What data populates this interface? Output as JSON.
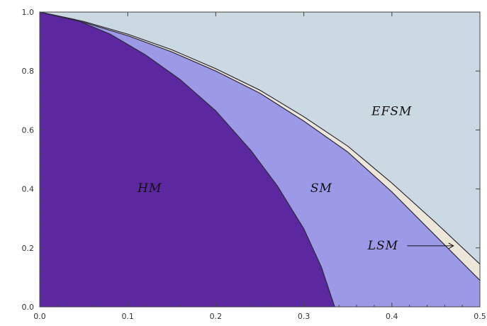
{
  "chart_data": {
    "type": "area",
    "title": "",
    "xlabel": "",
    "ylabel": "",
    "xlim": [
      0.0,
      0.5
    ],
    "ylim": [
      0.0,
      1.0
    ],
    "grid": false,
    "x_ticks": [
      "0.0",
      "0.1",
      "0.2",
      "0.3",
      "0.4",
      "0.5"
    ],
    "y_ticks": [
      "0.0",
      "0.2",
      "0.4",
      "0.6",
      "0.8",
      "1.0"
    ],
    "regions": [
      {
        "name": "HM",
        "color": "#5b28a0"
      },
      {
        "name": "SM",
        "color": "#9c9ae6"
      },
      {
        "name": "LSM",
        "color": "#ece7d8"
      },
      {
        "name": "EFSM",
        "color": "#cbd9e2"
      }
    ],
    "annotations": [
      {
        "text": "HM",
        "x": 0.125,
        "y": 0.39
      },
      {
        "text": "SM",
        "x": 0.32,
        "y": 0.39
      },
      {
        "text": "EFSM",
        "x": 0.4,
        "y": 0.65
      },
      {
        "text": "LSM",
        "x": 0.39,
        "y": 0.195,
        "arrow_to": [
          0.47,
          0.2
        ]
      }
    ],
    "boundaries": {
      "hm_upper": [
        [
          0.0,
          1.0
        ],
        [
          0.04,
          0.975
        ],
        [
          0.08,
          0.925
        ],
        [
          0.12,
          0.855
        ],
        [
          0.16,
          0.77
        ],
        [
          0.2,
          0.665
        ],
        [
          0.24,
          0.53
        ],
        [
          0.27,
          0.41
        ],
        [
          0.3,
          0.265
        ],
        [
          0.32,
          0.135
        ],
        [
          0.335,
          0.0
        ]
      ],
      "sm_upper": [
        [
          0.0,
          1.0
        ],
        [
          0.05,
          0.965
        ],
        [
          0.1,
          0.92
        ],
        [
          0.15,
          0.865
        ],
        [
          0.2,
          0.8
        ],
        [
          0.25,
          0.725
        ],
        [
          0.3,
          0.63
        ],
        [
          0.35,
          0.525
        ],
        [
          0.4,
          0.39
        ],
        [
          0.45,
          0.24
        ],
        [
          0.5,
          0.09
        ]
      ],
      "lsm_upper": [
        [
          0.0,
          1.0
        ],
        [
          0.05,
          0.968
        ],
        [
          0.1,
          0.925
        ],
        [
          0.15,
          0.872
        ],
        [
          0.2,
          0.808
        ],
        [
          0.25,
          0.735
        ],
        [
          0.3,
          0.645
        ],
        [
          0.35,
          0.545
        ],
        [
          0.4,
          0.42
        ],
        [
          0.45,
          0.285
        ],
        [
          0.5,
          0.145
        ]
      ]
    }
  }
}
